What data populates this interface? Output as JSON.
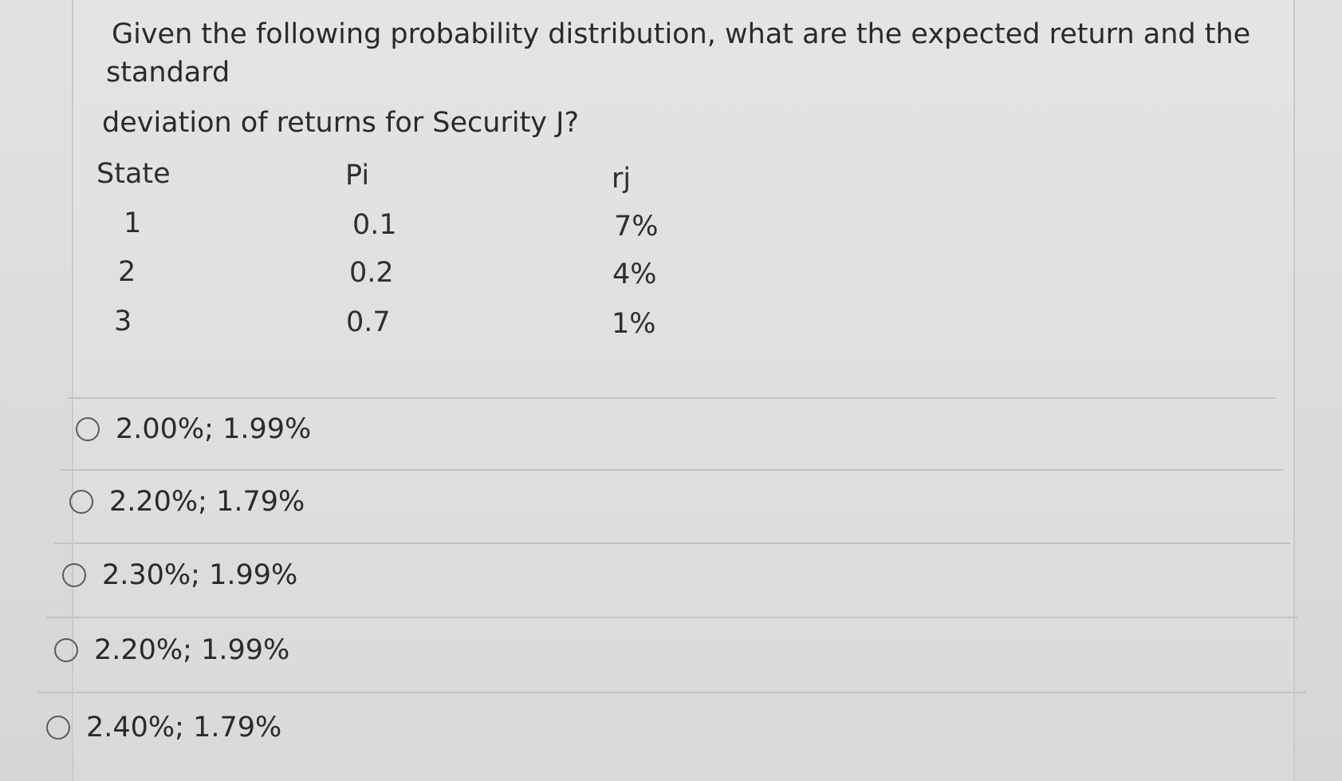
{
  "question": {
    "line1": "Given the following probability distribution, what are the expected return and the",
    "line2": "standard",
    "line3": "deviation of returns for Security J?"
  },
  "table": {
    "headers": [
      "State",
      "Pi",
      "rj"
    ],
    "rows": [
      [
        "1",
        "0.1",
        "7%"
      ],
      [
        "2",
        "0.2",
        "4%"
      ],
      [
        "3",
        "0.7",
        "1%"
      ]
    ]
  },
  "options": [
    {
      "label": "2.00%; 1.99%"
    },
    {
      "label": "2.20%; 1.79%"
    },
    {
      "label": "2.30%; 1.99%"
    },
    {
      "label": "2.20%; 1.99%"
    },
    {
      "label": "2.40%; 1.79%"
    }
  ]
}
